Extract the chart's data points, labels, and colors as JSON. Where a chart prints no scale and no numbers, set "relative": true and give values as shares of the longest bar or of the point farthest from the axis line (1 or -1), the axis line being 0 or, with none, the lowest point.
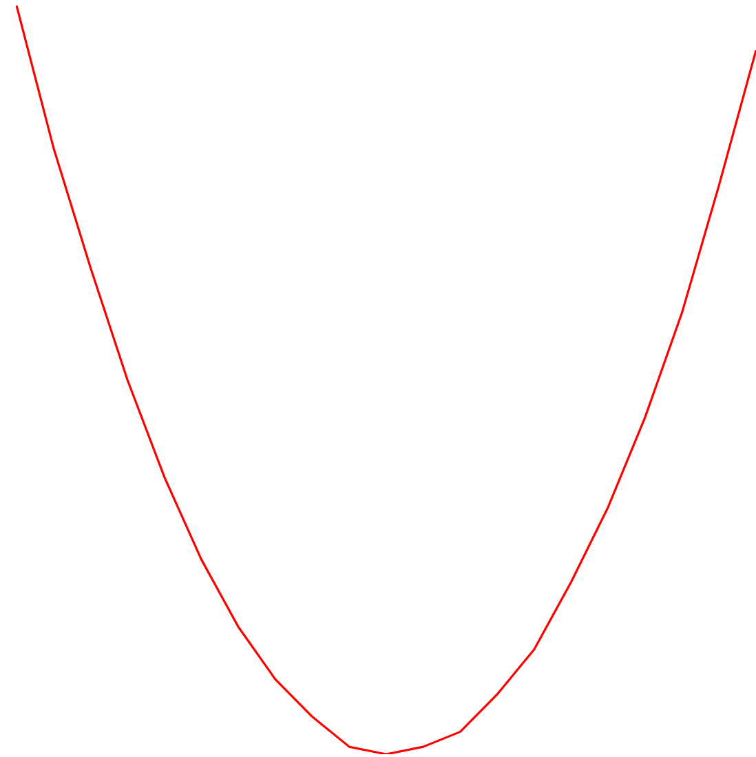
{
  "chart_data": {
    "type": "line",
    "relative": true,
    "marker": "none",
    "categories": [
      null,
      null,
      null,
      null,
      null,
      null,
      null,
      null,
      null,
      null,
      null,
      null,
      null,
      null,
      null,
      null,
      null,
      null,
      null,
      null,
      null
    ],
    "series": [
      {
        "color": "#ff0000",
        "values": [
          1.0,
          0.81,
          0.65,
          0.5,
          0.37,
          0.26,
          0.17,
          0.1,
          0.05,
          0.01,
          0.0,
          0.01,
          0.03,
          0.08,
          0.14,
          0.23,
          0.33,
          0.45,
          0.59,
          0.76,
          0.94
        ]
      }
    ]
  }
}
